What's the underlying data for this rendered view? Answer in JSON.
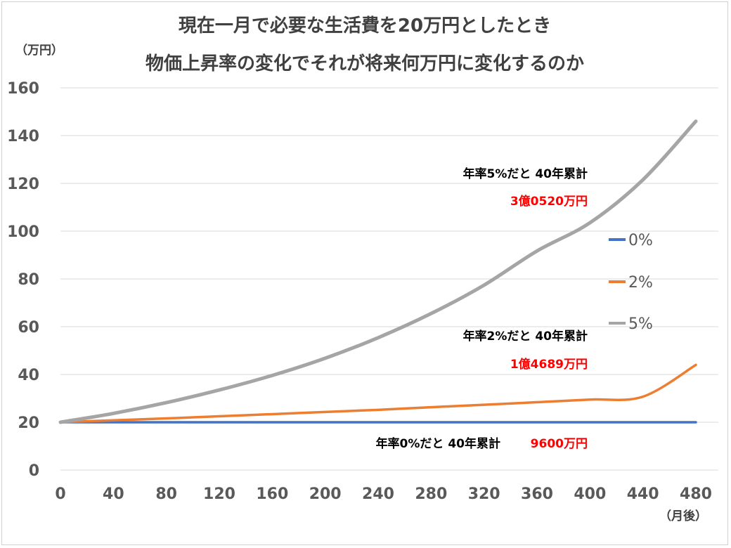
{
  "chart_data": {
    "type": "line",
    "title": [
      "現在一月で必要な生活費を20万円としたとき",
      "物価上昇率の変化でそれが将来何万円に変化するのか"
    ],
    "ylabel": "（万円）",
    "xlabel": "（月後）",
    "ylim": [
      0,
      160
    ],
    "yticks": [
      "0",
      "20",
      "40",
      "60",
      "80",
      "100",
      "120",
      "140",
      "160"
    ],
    "xlim": [
      0,
      480
    ],
    "xticks": [
      "0",
      "40",
      "80",
      "120",
      "160",
      "200",
      "240",
      "280",
      "320",
      "360",
      "400",
      "440",
      "480"
    ],
    "grid": "horizontal",
    "legend_position": "right",
    "x": [
      0,
      40,
      80,
      120,
      160,
      200,
      240,
      280,
      320,
      360,
      400,
      440,
      480
    ],
    "series": [
      {
        "name": "0%",
        "color": "#4472c4",
        "values": [
          20,
          20,
          20,
          20,
          20,
          20,
          20,
          20,
          20,
          20,
          20,
          20,
          20
        ]
      },
      {
        "name": "2%",
        "color": "#ed7d31",
        "values": [
          20,
          20.8,
          21.6,
          22.5,
          23.4,
          24.3,
          25.2,
          26.3,
          27.3,
          28.4,
          29.5,
          30.7,
          44
        ]
      },
      {
        "name": "5%",
        "color": "#a5a5a5",
        "values": [
          20,
          23.7,
          28.2,
          33.5,
          39.6,
          46.8,
          55.4,
          65.5,
          77.4,
          91.7,
          103.5,
          121.5,
          146
        ]
      }
    ],
    "annotations": [
      {
        "label": "年率5%だと 40年累計",
        "value": "3億0520万円"
      },
      {
        "label": "年率2%だと 40年累計",
        "value": "1億4689万円"
      },
      {
        "label": "年率0%だと 40年累計",
        "value": "9600万円"
      }
    ]
  }
}
